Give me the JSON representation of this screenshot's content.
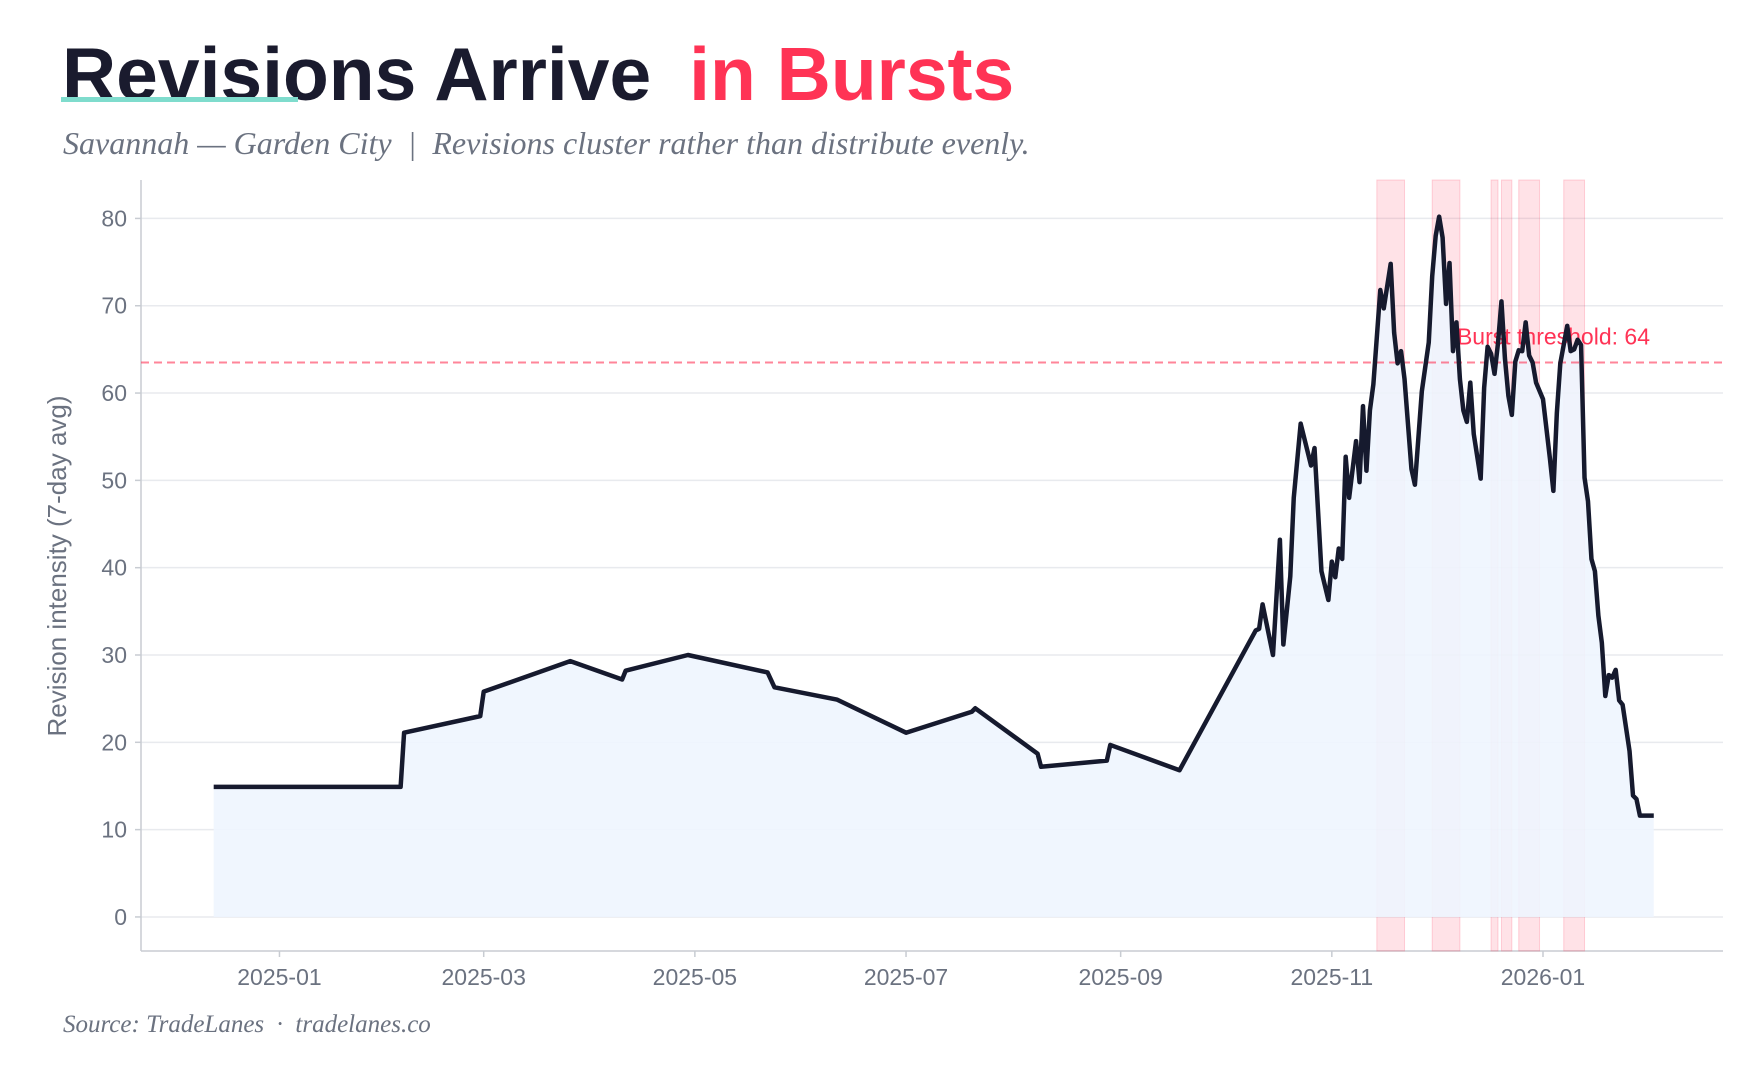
{
  "chart_data": {
    "type": "line",
    "title": "Revisions Arrive",
    "title_highlight": "in Bursts",
    "subtitle": "Savannah — Garden City  |  Revisions cluster rather than distribute evenly.",
    "source": "Source: TradeLanes  ·  tradelanes.co",
    "ylabel": "Revision intensity (7-day avg)",
    "color": "#161a2e",
    "area_color": "#eef5fe",
    "burst_color": "#ff3355",
    "threshold": {
      "value": 63.5,
      "label": "Burst threshold: 64"
    },
    "bursts": [
      [
        "2025-11-14",
        "2025-11-22"
      ],
      [
        "2025-11-30",
        "2025-12-08"
      ],
      [
        "2025-12-17",
        "2025-12-19"
      ],
      [
        "2025-12-20",
        "2025-12-23"
      ],
      [
        "2025-12-25",
        "2025-12-31"
      ],
      [
        "2026-01-07",
        "2026-01-13"
      ]
    ],
    "x": [
      "2024-12-13",
      "2025-02-05",
      "2025-02-06",
      "2025-02-28",
      "2025-03-01",
      "2025-03-26",
      "2025-04-10",
      "2025-04-11",
      "2025-04-29",
      "2025-05-22",
      "2025-05-24",
      "2025-06-11",
      "2025-07-01",
      "2025-07-20",
      "2025-07-21",
      "2025-08-08",
      "2025-08-09",
      "2025-08-28",
      "2025-08-29",
      "2025-09-18",
      "2025-10-10",
      "2025-10-11",
      "2025-10-12",
      "2025-10-15",
      "2025-10-17",
      "2025-10-18",
      "2025-10-20",
      "2025-10-21",
      "2025-10-23",
      "2025-10-26",
      "2025-10-27",
      "2025-10-29",
      "2025-10-31",
      "2025-11-01",
      "2025-11-02",
      "2025-11-03",
      "2025-11-04",
      "2025-11-05",
      "2025-11-06",
      "2025-11-08",
      "2025-11-09",
      "2025-11-10",
      "2025-11-11",
      "2025-11-12",
      "2025-11-13",
      "2025-11-15",
      "2025-11-16",
      "2025-11-18",
      "2025-11-19",
      "2025-11-20",
      "2025-11-21",
      "2025-11-22",
      "2025-11-24",
      "2025-11-25",
      "2025-11-27",
      "2025-11-29",
      "2025-11-30",
      "2025-12-01",
      "2025-12-02",
      "2025-12-03",
      "2025-12-04",
      "2025-12-05",
      "2025-12-06",
      "2025-12-07",
      "2025-12-08",
      "2025-12-09",
      "2025-12-10",
      "2025-12-11",
      "2025-12-12",
      "2025-12-14",
      "2025-12-15",
      "2025-12-16",
      "2025-12-17",
      "2025-12-18",
      "2025-12-19",
      "2025-12-20",
      "2025-12-21",
      "2025-12-22",
      "2025-12-23",
      "2025-12-24",
      "2025-12-25",
      "2025-12-26",
      "2025-12-27",
      "2025-12-28",
      "2025-12-29",
      "2025-12-30",
      "2026-01-01",
      "2026-01-03",
      "2026-01-04",
      "2026-01-05",
      "2026-01-06",
      "2026-01-08",
      "2026-01-09",
      "2026-01-10",
      "2026-01-11",
      "2026-01-12",
      "2026-01-13",
      "2026-01-14",
      "2026-01-15",
      "2026-01-16",
      "2026-01-17",
      "2026-01-18",
      "2026-01-19",
      "2026-01-20",
      "2026-01-21",
      "2026-01-22",
      "2026-01-23",
      "2026-01-24",
      "2026-01-26",
      "2026-01-27",
      "2026-01-28",
      "2026-01-29",
      "2026-02-02"
    ],
    "values": [
      14.9,
      14.9,
      21.1,
      23.0,
      25.8,
      29.3,
      27.2,
      28.2,
      30.0,
      28.0,
      26.3,
      24.9,
      21.1,
      23.5,
      23.9,
      18.7,
      17.2,
      17.9,
      19.7,
      16.8,
      32.8,
      33.0,
      35.8,
      30.0,
      43.2,
      31.2,
      39.0,
      48.0,
      56.5,
      51.7,
      53.7,
      39.6,
      36.3,
      40.7,
      38.9,
      42.2,
      41.0,
      52.7,
      48.0,
      54.5,
      49.8,
      58.5,
      51.1,
      58.0,
      61.0,
      71.8,
      69.7,
      74.8,
      66.9,
      63.4,
      64.8,
      61.6,
      51.3,
      49.5,
      60.2,
      65.8,
      73.4,
      78.0,
      80.2,
      77.8,
      70.2,
      74.9,
      64.8,
      68.1,
      61.6,
      58.0,
      56.7,
      61.2,
      55.3,
      50.2,
      60.6,
      65.3,
      64.5,
      62.2,
      65.7,
      70.5,
      64.0,
      59.7,
      57.5,
      63.6,
      64.9,
      64.8,
      68.1,
      64.3,
      63.5,
      61.2,
      59.3,
      52.5,
      48.8,
      57.7,
      63.4,
      67.7,
      64.8,
      65.0,
      66.1,
      65.5,
      50.3,
      47.6,
      41.0,
      39.6,
      34.5,
      31.4,
      25.3,
      27.7,
      27.4,
      28.3,
      24.8,
      24.3,
      19.0,
      13.9,
      13.5,
      11.6,
      11.6
    ],
    "xlim": [
      "2024-11-22",
      "2026-02-22"
    ],
    "xticks": [
      {
        "value": "2025-01-01",
        "label": "2025-01"
      },
      {
        "value": "2025-03-01",
        "label": "2025-03"
      },
      {
        "value": "2025-05-01",
        "label": "2025-05"
      },
      {
        "value": "2025-07-01",
        "label": "2025-07"
      },
      {
        "value": "2025-09-01",
        "label": "2025-09"
      },
      {
        "value": "2025-11-01",
        "label": "2025-11"
      },
      {
        "value": "2026-01-01",
        "label": "2026-01"
      }
    ],
    "ylim": [
      -3.9,
      84.4
    ],
    "yticks": [
      0,
      10,
      20,
      30,
      40,
      50,
      60,
      70,
      80
    ],
    "grid": true
  }
}
